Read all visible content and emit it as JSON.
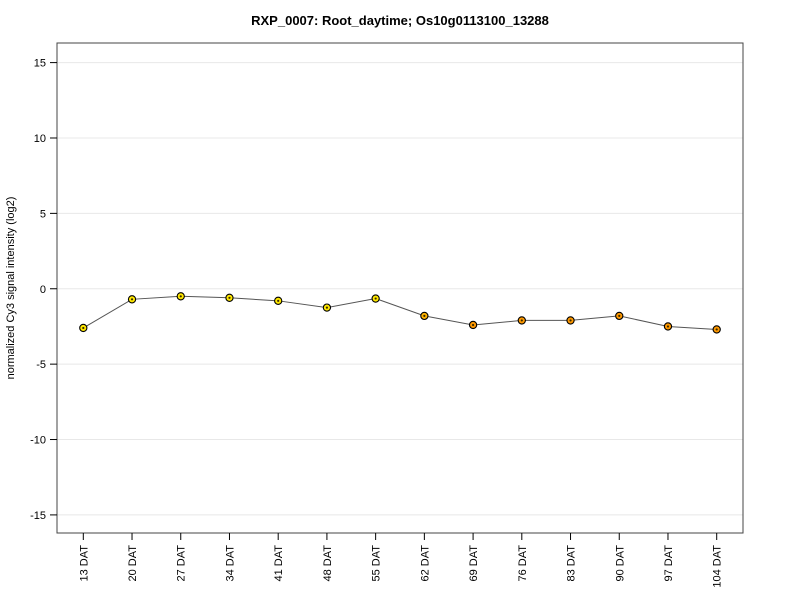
{
  "chart_data": {
    "type": "line",
    "title": "RXP_0007: Root_daytime; Os10g0113100_13288",
    "ylabel": "normalized Cy3 signal intensity (log2)",
    "xlabel": "",
    "categories": [
      "13 DAT",
      "20 DAT",
      "27 DAT",
      "34 DAT",
      "41 DAT",
      "48 DAT",
      "55 DAT",
      "62 DAT",
      "69 DAT",
      "76 DAT",
      "83 DAT",
      "90 DAT",
      "97 DAT",
      "104 DAT"
    ],
    "values": [
      -2.6,
      -0.7,
      -0.5,
      -0.6,
      -0.8,
      -1.25,
      -0.65,
      -1.8,
      -2.4,
      -2.1,
      -2.1,
      -1.8,
      -2.5,
      -2.7
    ],
    "point_colors": [
      "#ffe800",
      "#ffe800",
      "#ffe800",
      "#ffe800",
      "#ffe800",
      "#ffe800",
      "#ffe800",
      "#ffb300",
      "#ff9900",
      "#ff9900",
      "#ff9900",
      "#ff9900",
      "#ff9900",
      "#ff9900"
    ],
    "marker_edge_color": "#000000",
    "marker_center_color": "#3a2a00",
    "line_color": "#555555",
    "grid": true,
    "grid_color": "#e8e8e8",
    "box_color": "#444444",
    "legend": "none",
    "yticks": [
      -15,
      -10,
      -5,
      0,
      5,
      10,
      15
    ],
    "ylim": [
      -16.2,
      16.3
    ]
  }
}
